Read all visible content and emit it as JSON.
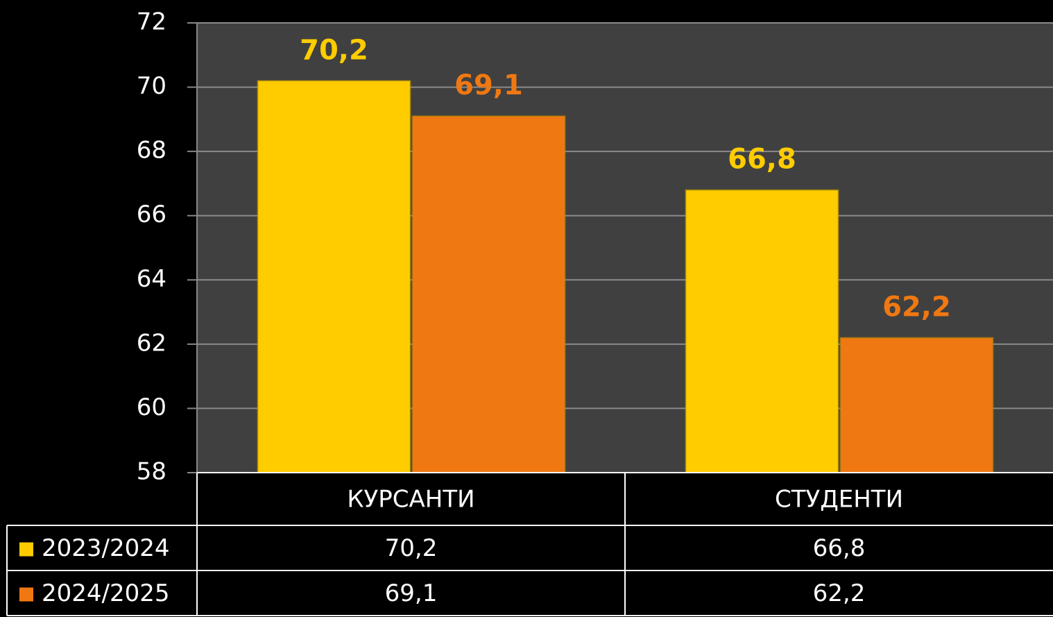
{
  "chart_data": {
    "type": "bar",
    "categories": [
      "КУРСАНТИ",
      "СТУДЕНТИ"
    ],
    "series": [
      {
        "name": "2023/2024",
        "color": "#ffcc00",
        "values": [
          70.2,
          66.8
        ],
        "value_labels": [
          "70,2",
          "66,8"
        ]
      },
      {
        "name": "2024/2025",
        "color": "#f07812",
        "values": [
          69.1,
          62.2
        ],
        "value_labels": [
          "69,1",
          "62,2"
        ]
      }
    ],
    "ylim": [
      58,
      72
    ],
    "yticks": [
      58,
      60,
      62,
      64,
      66,
      68,
      70,
      72
    ],
    "grid": true,
    "data_table": true
  }
}
